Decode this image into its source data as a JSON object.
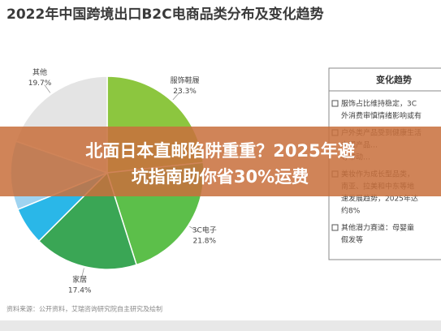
{
  "chart_data": {
    "type": "pie",
    "title": "2022年中国跨境出口B2C电商品类分布及变化趋势",
    "categories": [
      "服饰鞋履",
      "3C电子",
      "家居",
      null,
      null,
      "其他"
    ],
    "values": [
      23.3,
      21.8,
      17.4,
      6.3,
      11.5,
      19.7
    ],
    "value_labels": [
      "23.3%",
      "21.8%",
      "17.4%",
      null,
      null,
      "19.7%"
    ],
    "colors": [
      "#8cc63f",
      "#5cbf4a",
      "#3aa655",
      "#2ab7e8",
      "#9fd3f0",
      "#e4e4e4"
    ],
    "source": "资料来源：公开资料，艾瑞咨询研究院自主研究及绘制"
  },
  "panel": {
    "title": "变化趋势",
    "items": [
      [
        "服饰占比维持稳定，3C",
        "外消费审慎情绪影响或有"
      ],
      [
        "户外类产品受到健康生活",
        "中国产品…",
        "等带动…"
      ],
      [
        "美妆作为成长型品类，",
        "南亚、拉美和中东等地",
        "速发展趋势，2025年达",
        "约8%"
      ],
      [
        "其他潜力赛道：母婴童",
        "假发等"
      ]
    ]
  },
  "overlay": {
    "lines": [
      "北面日本直邮陷阱重重？2025年避",
      "坑指南助你省30%运费"
    ]
  }
}
